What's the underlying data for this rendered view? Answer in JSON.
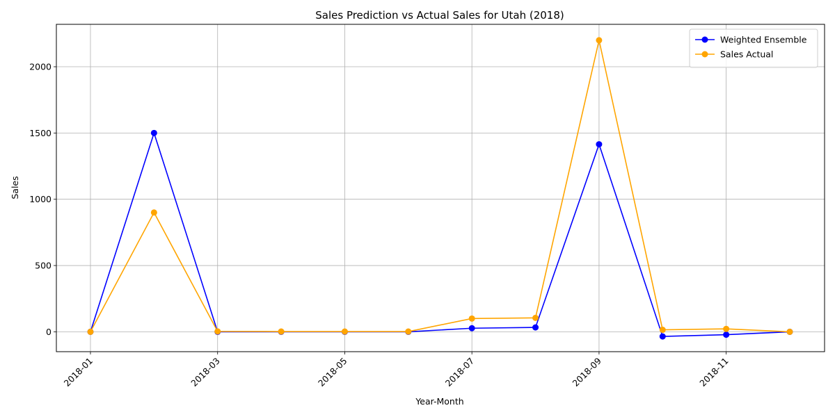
{
  "chart_data": {
    "type": "line",
    "title": "Sales Prediction vs Actual Sales for Utah (2018)",
    "xlabel": "Year-Month",
    "ylabel": "Sales",
    "x": [
      "2018-01",
      "2018-02",
      "2018-03",
      "2018-04",
      "2018-05",
      "2018-06",
      "2018-07",
      "2018-08",
      "2018-09",
      "2018-10",
      "2018-11",
      "2018-12"
    ],
    "x_ticks": [
      "2018-01",
      "2018-03",
      "2018-05",
      "2018-07",
      "2018-09",
      "2018-11"
    ],
    "y_ticks": [
      0,
      500,
      1000,
      1500,
      2000
    ],
    "ylim": [
      -150,
      2320
    ],
    "grid": true,
    "legend": "top-right",
    "series": [
      {
        "name": "Weighted Ensemble",
        "color": "#0000ff",
        "values": [
          0,
          1500,
          0,
          0,
          0,
          0,
          27,
          33,
          1415,
          -35,
          -22,
          0
        ]
      },
      {
        "name": "Sales Actual",
        "color": "#ffa500",
        "values": [
          0,
          900,
          3,
          2,
          2,
          2,
          100,
          105,
          2200,
          15,
          22,
          0
        ]
      }
    ]
  }
}
